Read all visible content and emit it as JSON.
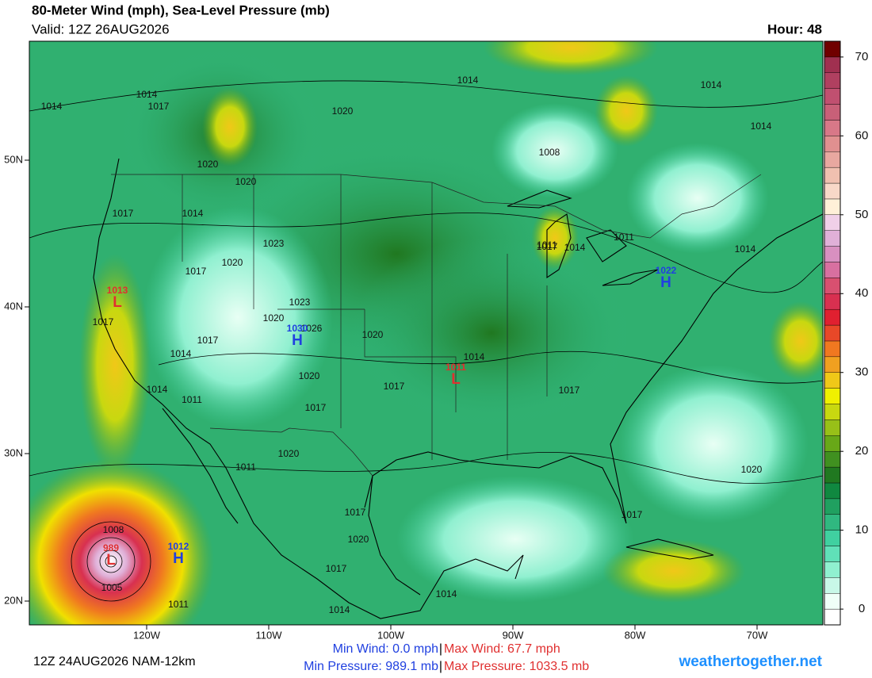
{
  "header": {
    "title": "80-Meter Wind (mph), Sea-Level Pressure (mb)",
    "valid": "Valid: 12Z 26AUG2026",
    "hour": "Hour: 48"
  },
  "map": {
    "lat_labels": [
      "50N",
      "40N",
      "30N",
      "20N"
    ],
    "lon_labels": [
      "120W",
      "110W",
      "100W",
      "90W",
      "80W",
      "70W"
    ],
    "isobar_labels": [
      "1014",
      "1014",
      "1017",
      "1020",
      "1014",
      "1020",
      "1008",
      "1014",
      "1014",
      "1020",
      "1017",
      "1014",
      "1023",
      "1020",
      "1017",
      "1023",
      "1020",
      "1026",
      "1017",
      "1017",
      "1014",
      "1020",
      "1014",
      "1017",
      "1017",
      "1014",
      "1011",
      "1017",
      "1020",
      "1017",
      "1011",
      "1020",
      "1011",
      "1017",
      "1020",
      "1017",
      "1014",
      "1014",
      "1008",
      "1005",
      "1011",
      "1017",
      "1020",
      "1011",
      "1014",
      "1014"
    ],
    "centers": [
      {
        "symbol": "L",
        "pressure": "1013",
        "color": "#e03030"
      },
      {
        "symbol": "H",
        "pressure": "1030",
        "color": "#2040e0"
      },
      {
        "symbol": "H",
        "pressure": "1022",
        "color": "#2040e0"
      },
      {
        "symbol": "L",
        "pressure": "1011",
        "color": "#e03030"
      },
      {
        "symbol": "L",
        "pressure": "989",
        "color": "#e03030"
      },
      {
        "symbol": "H",
        "pressure": "1012",
        "color": "#2040e0"
      }
    ]
  },
  "colorbar": {
    "lim": [
      -2,
      72
    ],
    "ticks": [
      0,
      10,
      20,
      30,
      40,
      50,
      60,
      70
    ],
    "colors": [
      "#ffffff",
      "#f0fff8",
      "#c8f8e8",
      "#90f0d0",
      "#60e0b8",
      "#40d0a0",
      "#30b880",
      "#20a060",
      "#108840",
      "#207820",
      "#409020",
      "#68a818",
      "#98c018",
      "#c8d810",
      "#f0f000",
      "#f0c818",
      "#f0a020",
      "#f07820",
      "#e84828",
      "#e02030",
      "#d83050",
      "#d85070",
      "#d870a0",
      "#d890c0",
      "#e0b0d8",
      "#f0d0e8",
      "#fff0d8",
      "#f8d8c8",
      "#f0c0b0",
      "#e8a8a0",
      "#e09090",
      "#d87888",
      "#c86078",
      "#c05070",
      "#b04060",
      "#a03050",
      "#700000"
    ]
  },
  "footer": {
    "run": "12Z 24AUG2026 NAM-12km",
    "min_wind": "Min Wind:  0.0 mph",
    "max_wind": "Max Wind: 67.7 mph",
    "min_pressure": "Min Pressure: 989.1 mb",
    "max_pressure": "Max Pressure: 1033.5 mb",
    "separator": "|",
    "site": "weathertogether.net"
  }
}
